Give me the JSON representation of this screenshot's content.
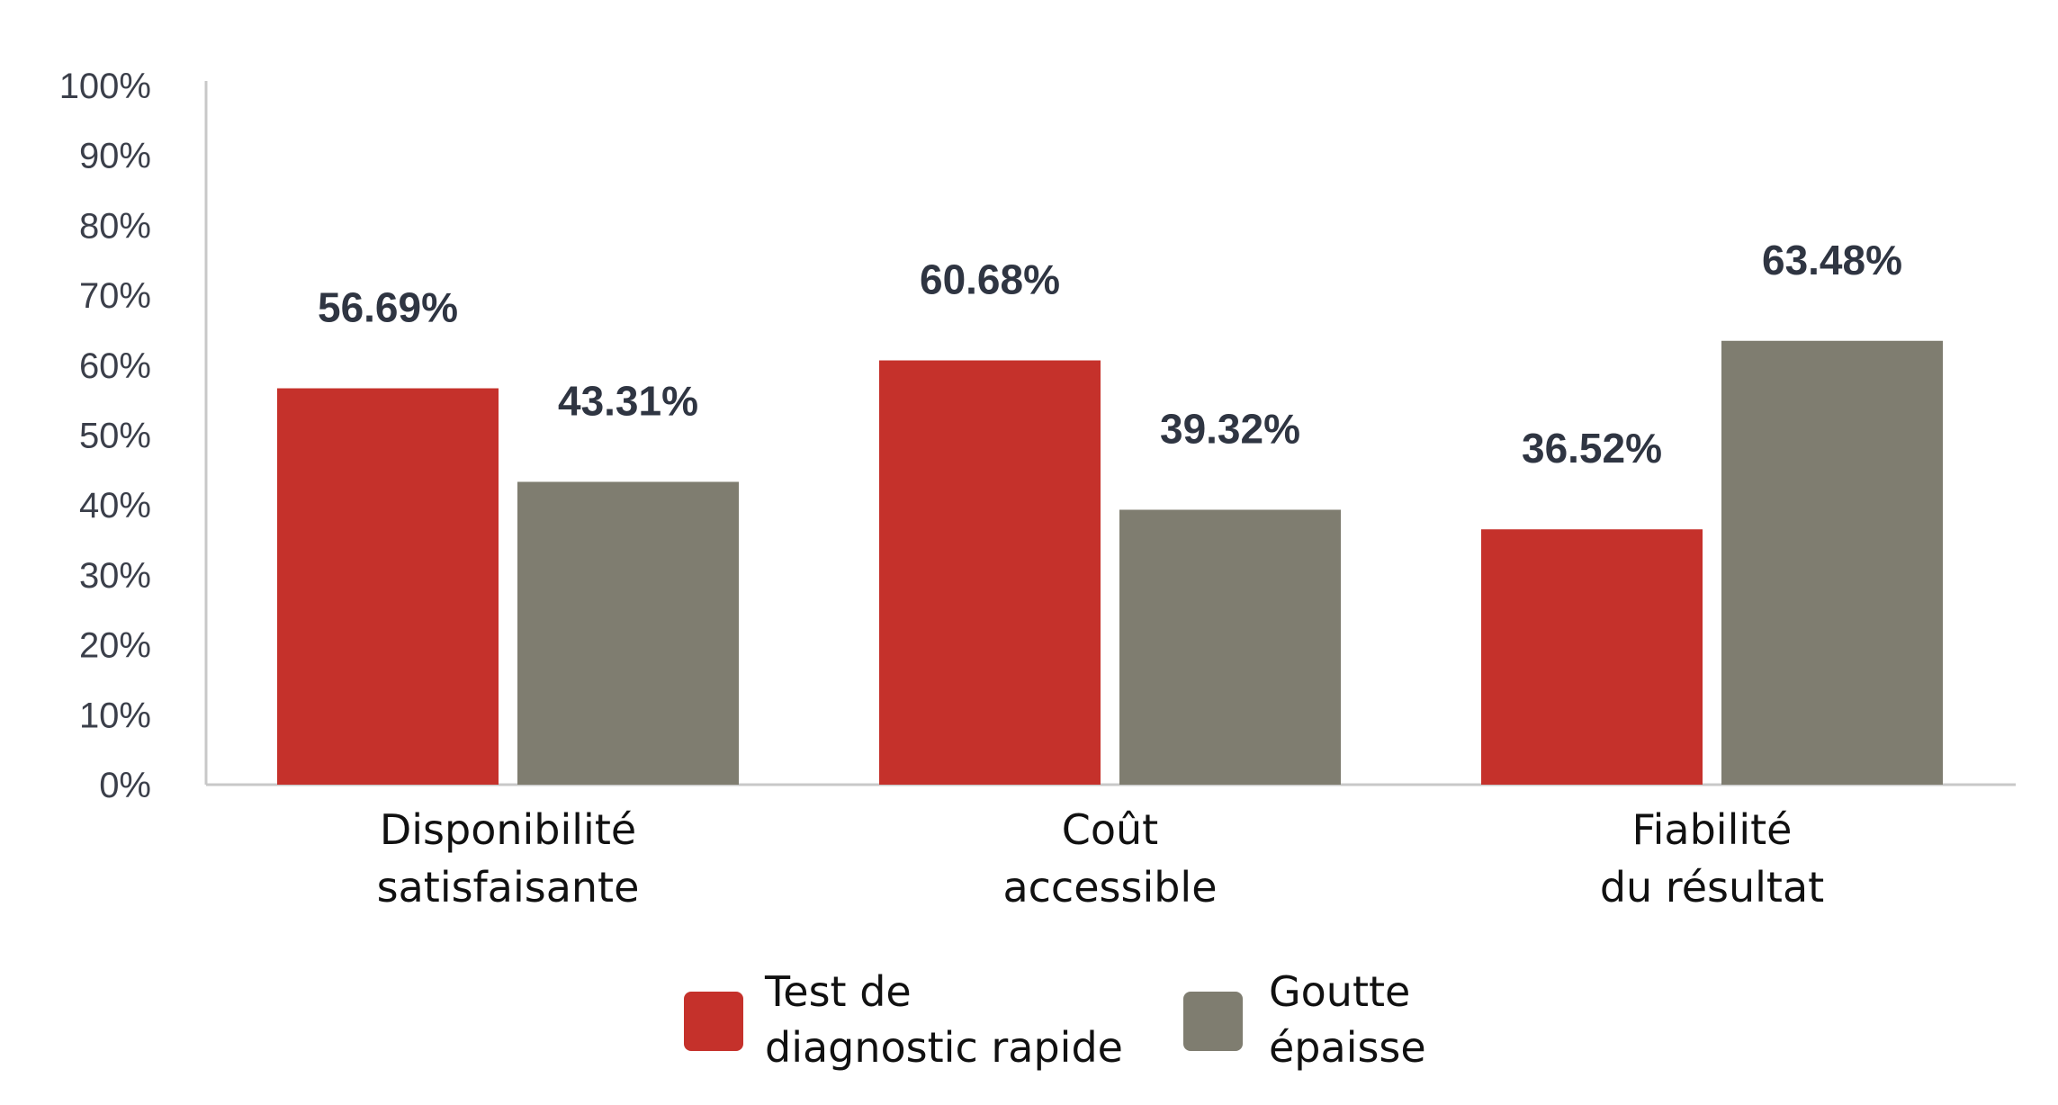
{
  "chart_data": {
    "type": "bar",
    "categories": [
      [
        "Disponibilité",
        "satisfaisante"
      ],
      [
        "Coût",
        "accessible"
      ],
      [
        "Fiabilité",
        "du résultat"
      ]
    ],
    "series": [
      {
        "name": [
          "Test de",
          "diagnostic rapide"
        ],
        "values": [
          56.69,
          60.68,
          36.52
        ],
        "labels": [
          "56.69%",
          "60.68%",
          "36.52%"
        ],
        "color": "#c5312b"
      },
      {
        "name": [
          "Goutte",
          "épaisse"
        ],
        "values": [
          43.31,
          39.32,
          63.48
        ],
        "labels": [
          "43.31%",
          "39.32%",
          "63.48%"
        ],
        "color": "#7f7d70"
      }
    ],
    "y_ticks": [
      "0%",
      "10%",
      "20%",
      "30%",
      "40%",
      "50%",
      "60%",
      "70%",
      "80%",
      "90%",
      "100%"
    ],
    "ylim": [
      0,
      100
    ],
    "grid": false,
    "legend_position": "bottom"
  }
}
